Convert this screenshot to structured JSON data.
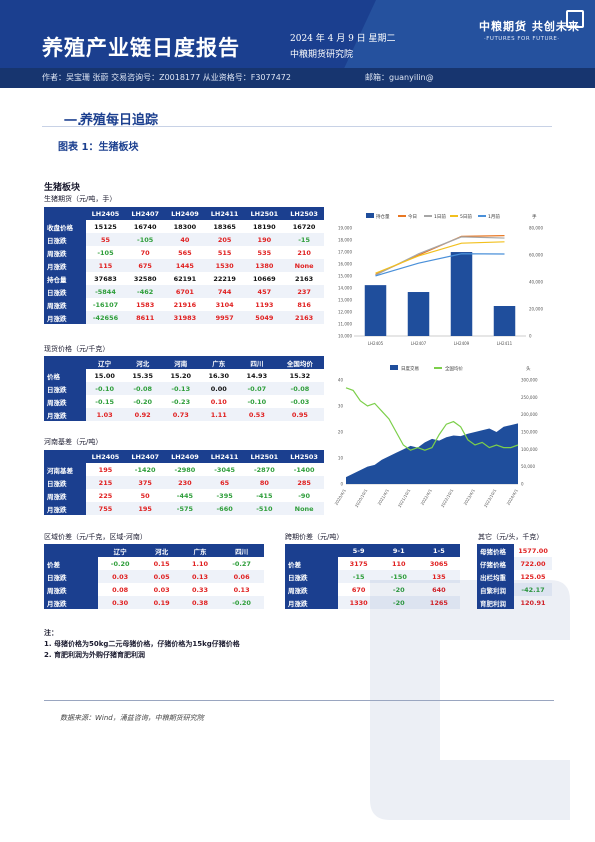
{
  "header": {
    "title": "养殖产业链日度报告",
    "date": "2024 年 4 月 9 日 星期二",
    "institute": "中粮期货研究院",
    "logo": "中粮期货 共创未来",
    "slogan": "·FUTURES FOR FUTURE·",
    "authors": "作者：吴宝珊 张蔚 交易咨询号：Z0018177 从业资格号：F3077472",
    "email": "邮箱：guanyilin@"
  },
  "section": {
    "num": "一.",
    "title": "养殖每日追踪"
  },
  "figure_caption": "图表 1：生猪板块",
  "block_title": "生猪板块",
  "futures": {
    "caption": "生猪期货（元/吨，手）",
    "columns": [
      "",
      "LH2405",
      "LH2407",
      "LH2409",
      "LH2411",
      "LH2501",
      "LH2503"
    ],
    "rows": [
      {
        "label": "收盘价格",
        "values": [
          "15125",
          "16740",
          "18300",
          "18365",
          "18190",
          "16720"
        ],
        "colors": [
          "blk",
          "blk",
          "blk",
          "blk",
          "blk",
          "blk"
        ]
      },
      {
        "label": "日涨跌",
        "values": [
          "55",
          "-105",
          "40",
          "205",
          "190",
          "-15"
        ],
        "colors": [
          "red",
          "grn",
          "red",
          "red",
          "red",
          "grn"
        ]
      },
      {
        "label": "周涨跌",
        "values": [
          "-105",
          "70",
          "565",
          "515",
          "535",
          "210"
        ],
        "colors": [
          "grn",
          "red",
          "red",
          "red",
          "red",
          "red"
        ]
      },
      {
        "label": "月涨跌",
        "values": [
          "115",
          "675",
          "1445",
          "1530",
          "1380",
          "None"
        ],
        "colors": [
          "red",
          "red",
          "red",
          "red",
          "red",
          "red"
        ]
      },
      {
        "label": "持仓量",
        "values": [
          "37683",
          "32580",
          "62191",
          "22219",
          "10669",
          "2163"
        ],
        "colors": [
          "blk",
          "blk",
          "blk",
          "blk",
          "blk",
          "blk"
        ]
      },
      {
        "label": "日涨跌",
        "values": [
          "-5844",
          "-462",
          "6701",
          "744",
          "457",
          "237"
        ],
        "colors": [
          "grn",
          "grn",
          "red",
          "red",
          "red",
          "red"
        ]
      },
      {
        "label": "周涨跌",
        "values": [
          "-16107",
          "1583",
          "21916",
          "3104",
          "1193",
          "816"
        ],
        "colors": [
          "grn",
          "red",
          "red",
          "red",
          "red",
          "red"
        ]
      },
      {
        "label": "月涨跌",
        "values": [
          "-42656",
          "8611",
          "31983",
          "9957",
          "5049",
          "2163"
        ],
        "colors": [
          "grn",
          "red",
          "red",
          "red",
          "red",
          "red"
        ]
      }
    ]
  },
  "spot": {
    "caption": "现货价格（元/千克）",
    "columns": [
      "",
      "辽宁",
      "河北",
      "河南",
      "广东",
      "四川",
      "全国均价"
    ],
    "rows": [
      {
        "label": "价格",
        "values": [
          "15.00",
          "15.35",
          "15.20",
          "16.30",
          "14.93",
          "15.32"
        ],
        "colors": [
          "blk",
          "blk",
          "blk",
          "blk",
          "blk",
          "blk"
        ]
      },
      {
        "label": "日涨跌",
        "values": [
          "-0.10",
          "-0.08",
          "-0.13",
          "0.00",
          "-0.07",
          "-0.08"
        ],
        "colors": [
          "grn",
          "grn",
          "grn",
          "blk",
          "grn",
          "grn"
        ]
      },
      {
        "label": "周涨跌",
        "values": [
          "-0.15",
          "-0.20",
          "-0.23",
          "0.10",
          "-0.10",
          "-0.03"
        ],
        "colors": [
          "grn",
          "grn",
          "grn",
          "red",
          "grn",
          "grn"
        ]
      },
      {
        "label": "月涨跌",
        "values": [
          "1.03",
          "0.92",
          "0.73",
          "1.11",
          "0.53",
          "0.95"
        ],
        "colors": [
          "red",
          "red",
          "red",
          "red",
          "red",
          "red"
        ]
      }
    ]
  },
  "basis": {
    "caption": "河南基差（元/吨）",
    "columns": [
      "",
      "LH2405",
      "LH2407",
      "LH2409",
      "LH2411",
      "LH2501",
      "LH2503"
    ],
    "rows": [
      {
        "label": "河南基差",
        "values": [
          "195",
          "-1420",
          "-2980",
          "-3045",
          "-2870",
          "-1400"
        ],
        "colors": [
          "red",
          "grn",
          "grn",
          "grn",
          "grn",
          "grn"
        ]
      },
      {
        "label": "日涨跌",
        "values": [
          "215",
          "375",
          "230",
          "65",
          "80",
          "285"
        ],
        "colors": [
          "red",
          "red",
          "red",
          "red",
          "red",
          "red"
        ]
      },
      {
        "label": "周涨跌",
        "values": [
          "225",
          "50",
          "-445",
          "-395",
          "-415",
          "-90"
        ],
        "colors": [
          "red",
          "red",
          "grn",
          "grn",
          "grn",
          "grn"
        ]
      },
      {
        "label": "月涨跌",
        "values": [
          "755",
          "195",
          "-575",
          "-660",
          "-510",
          "None"
        ],
        "colors": [
          "red",
          "red",
          "grn",
          "grn",
          "grn",
          "grn"
        ]
      }
    ]
  },
  "regional": {
    "caption": "区域价差（元/千克，区域-河南）",
    "columns": [
      "",
      "辽宁",
      "河北",
      "广东",
      "四川"
    ],
    "rows": [
      {
        "label": "价差",
        "values": [
          "-0.20",
          "0.15",
          "1.10",
          "-0.27"
        ],
        "colors": [
          "grn",
          "red",
          "red",
          "grn"
        ]
      },
      {
        "label": "日涨跌",
        "values": [
          "0.03",
          "0.05",
          "0.13",
          "0.06"
        ],
        "colors": [
          "red",
          "red",
          "red",
          "red"
        ]
      },
      {
        "label": "周涨跌",
        "values": [
          "0.08",
          "0.03",
          "0.33",
          "0.13"
        ],
        "colors": [
          "red",
          "red",
          "red",
          "red"
        ]
      },
      {
        "label": "月涨跌",
        "values": [
          "0.30",
          "0.19",
          "0.38",
          "-0.20"
        ],
        "colors": [
          "red",
          "red",
          "red",
          "grn"
        ]
      }
    ]
  },
  "spread": {
    "caption": "跨期价差（元/吨）",
    "columns": [
      "",
      "5-9",
      "9-1",
      "1-5"
    ],
    "rows": [
      {
        "label": "价差",
        "values": [
          "3175",
          "110",
          "3065"
        ],
        "colors": [
          "red",
          "red",
          "red"
        ]
      },
      {
        "label": "日涨跌",
        "values": [
          "-15",
          "-150",
          "135"
        ],
        "colors": [
          "grn",
          "grn",
          "red"
        ]
      },
      {
        "label": "周涨跌",
        "values": [
          "670",
          "-20",
          "640"
        ],
        "colors": [
          "red",
          "grn",
          "red"
        ]
      },
      {
        "label": "月涨跌",
        "values": [
          "1330",
          "-20",
          "1265"
        ],
        "colors": [
          "red",
          "grn",
          "red"
        ]
      }
    ]
  },
  "other": {
    "caption": "其它（元/头，千克）",
    "rows": [
      {
        "label": "母猪价格",
        "value": "1577.00",
        "color": "red"
      },
      {
        "label": "仔猪价格",
        "value": "722.00",
        "color": "red"
      },
      {
        "label": "出栏均重",
        "value": "125.05",
        "color": "red"
      },
      {
        "label": "自繁利润",
        "value": "-42.17",
        "color": "grn"
      },
      {
        "label": "育肥利润",
        "value": "120.91",
        "color": "red"
      }
    ]
  },
  "notes": {
    "title": "注：",
    "lines": [
      "1. 母猪价格为50kg二元母猪价格，仔猪价格为15kg仔猪价格",
      "2. 育肥利润为外购仔猪育肥利润"
    ]
  },
  "source": "数据来源：Wind，涌益咨询，中粮期货研究院",
  "chart_data": [
    {
      "type": "bar",
      "title": "",
      "legend": [
        "持仓量",
        "今日",
        "1日前",
        "5日前",
        "1月前"
      ],
      "legend_unit": "手",
      "categories": [
        "LH2405",
        "LH2407",
        "LH2409",
        "LH2411"
      ],
      "x_tick_labels": [
        "LH2405",
        "LH2407",
        "LH2409",
        "LH2411"
      ],
      "series": [
        {
          "name": "持仓量",
          "type": "bar",
          "axis": "right",
          "values": [
            37683,
            32580,
            62191,
            22219
          ]
        },
        {
          "name": "今日",
          "type": "line",
          "axis": "left",
          "values": [
            15125,
            16740,
            18300,
            18365
          ]
        },
        {
          "name": "1日前",
          "type": "line",
          "axis": "left",
          "values": [
            15070,
            16845,
            18260,
            18160
          ]
        },
        {
          "name": "5日前",
          "type": "line",
          "axis": "left",
          "values": [
            15230,
            16670,
            17735,
            17850
          ]
        },
        {
          "name": "1月前",
          "type": "line",
          "axis": "left",
          "values": [
            15010,
            16065,
            16855,
            16835
          ]
        }
      ],
      "ylim_left": [
        10000,
        19000
      ],
      "yticks_left": [
        "19,000",
        "18,000",
        "17,000",
        "16,000",
        "15,000",
        "14,000",
        "13,000",
        "12,000",
        "11,000",
        "10,000"
      ],
      "ylim_right": [
        0,
        80000
      ],
      "yticks_right": [
        "80,000",
        "60,000",
        "40,000",
        "20,000",
        "0"
      ],
      "colors": {
        "持仓量": "#1f4e9c",
        "今日": "#e87722",
        "1日前": "#a6a6a6",
        "5日前": "#f2c01e",
        "1月前": "#4a90d9"
      }
    },
    {
      "type": "area",
      "title": "",
      "legend": [
        "日度交易",
        "全国均价"
      ],
      "legend_unit": "头",
      "x_tick_labels": [
        "2020/4/1",
        "2020/10/1",
        "2021/4/1",
        "2021/10/1",
        "2022/4/1",
        "2022/10/1",
        "2023/4/1",
        "2023/10/1",
        "2024/4/1"
      ],
      "ylim_left": [
        0,
        40
      ],
      "yticks_left": [
        "40",
        "30",
        "20",
        "10",
        "0"
      ],
      "ylim_right": [
        0,
        300000
      ],
      "yticks_right": [
        "300,000",
        "250,000",
        "200,000",
        "150,000",
        "100,000",
        "50,000",
        "0"
      ],
      "series": [
        {
          "name": "日度交易",
          "type": "area",
          "axis": "right",
          "values": [
            20000,
            30000,
            40000,
            50000,
            55000,
            70000,
            80000,
            90000,
            100000,
            110000,
            105000,
            120000,
            130000,
            125000,
            135000,
            140000,
            138000,
            145000,
            150000,
            155000,
            160000,
            150000,
            165000,
            170000,
            175000
          ]
        },
        {
          "name": "全国均价",
          "type": "line",
          "axis": "left",
          "values": [
            37,
            36,
            32,
            30,
            31,
            28,
            25,
            20,
            15,
            13,
            14,
            13,
            14,
            19,
            23,
            24,
            22,
            17,
            15,
            16,
            14,
            15,
            14,
            14,
            15
          ]
        }
      ],
      "colors": {
        "日度交易": "#1f4e9c",
        "全国均价": "#7ccf4a"
      }
    }
  ]
}
